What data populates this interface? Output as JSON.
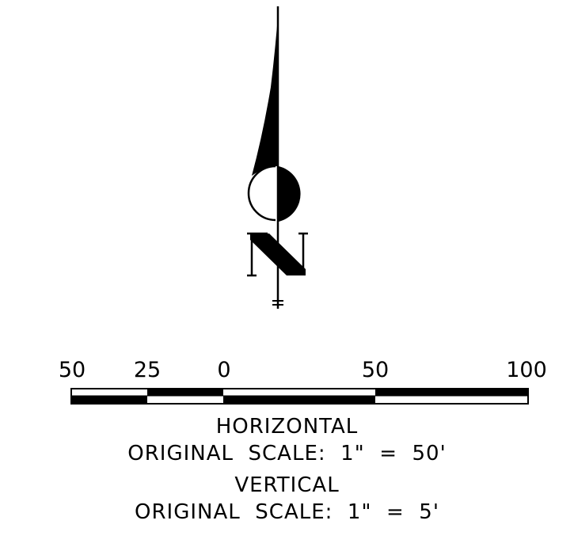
{
  "scale": {
    "ticks": [
      "50",
      "25",
      "0",
      "50",
      "100"
    ]
  },
  "horizontal": {
    "title": "HORIZONTAL",
    "scale_text": "ORIGINAL  SCALE:  1\"  =  50'"
  },
  "vertical": {
    "title": "VERTICAL",
    "scale_text": "ORIGINAL  SCALE:  1\"  =  5'"
  },
  "north_arrow": {
    "icon": "north-arrow-icon",
    "letter": "N"
  }
}
